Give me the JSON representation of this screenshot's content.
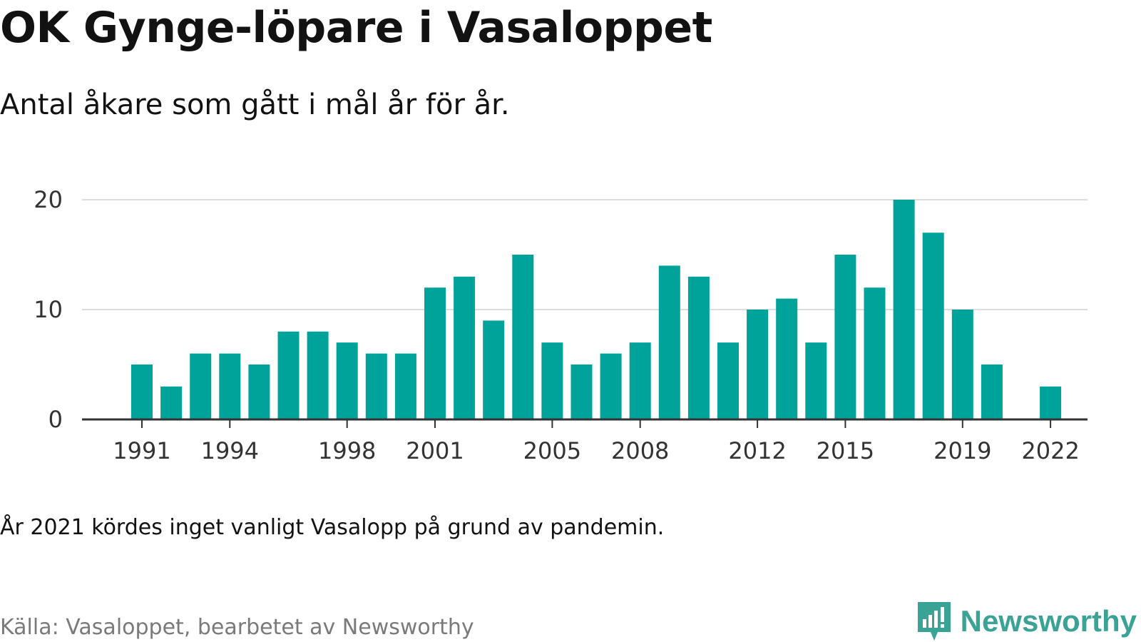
{
  "title": "OK Gynge-löpare i Vasaloppet",
  "subtitle": "Antal åkare som gått i mål år för år.",
  "note": "År 2021 kördes inget vanligt Vasalopp på grund av pandemin.",
  "source": "Källa: Vasaloppet, bearbetet av Newsworthy",
  "brand": {
    "name": "Newsworthy",
    "icon": "newsworthy-logo-icon",
    "color": "#3aa396"
  },
  "colors": {
    "bar": "#00a39a",
    "grid": "#dddddd",
    "axis": "#333333"
  },
  "chart_data": {
    "type": "bar",
    "categories": [
      1991,
      1992,
      1993,
      1994,
      1995,
      1996,
      1997,
      1998,
      1999,
      2000,
      2001,
      2002,
      2003,
      2004,
      2005,
      2006,
      2007,
      2008,
      2009,
      2010,
      2011,
      2012,
      2013,
      2014,
      2015,
      2016,
      2017,
      2018,
      2019,
      2020,
      2021,
      2022
    ],
    "values": [
      5,
      3,
      6,
      6,
      5,
      8,
      8,
      7,
      6,
      6,
      12,
      13,
      9,
      15,
      7,
      5,
      6,
      7,
      14,
      13,
      7,
      10,
      11,
      7,
      15,
      12,
      20,
      17,
      10,
      5,
      null,
      3
    ],
    "x_tick_labels": [
      "1991",
      "1994",
      "1998",
      "2001",
      "2005",
      "2008",
      "2012",
      "2015",
      "2019",
      "2022"
    ],
    "y_ticks": [
      0,
      10,
      20
    ],
    "ylim": [
      0,
      20
    ],
    "grid": true,
    "xlabel": "",
    "ylabel": ""
  }
}
